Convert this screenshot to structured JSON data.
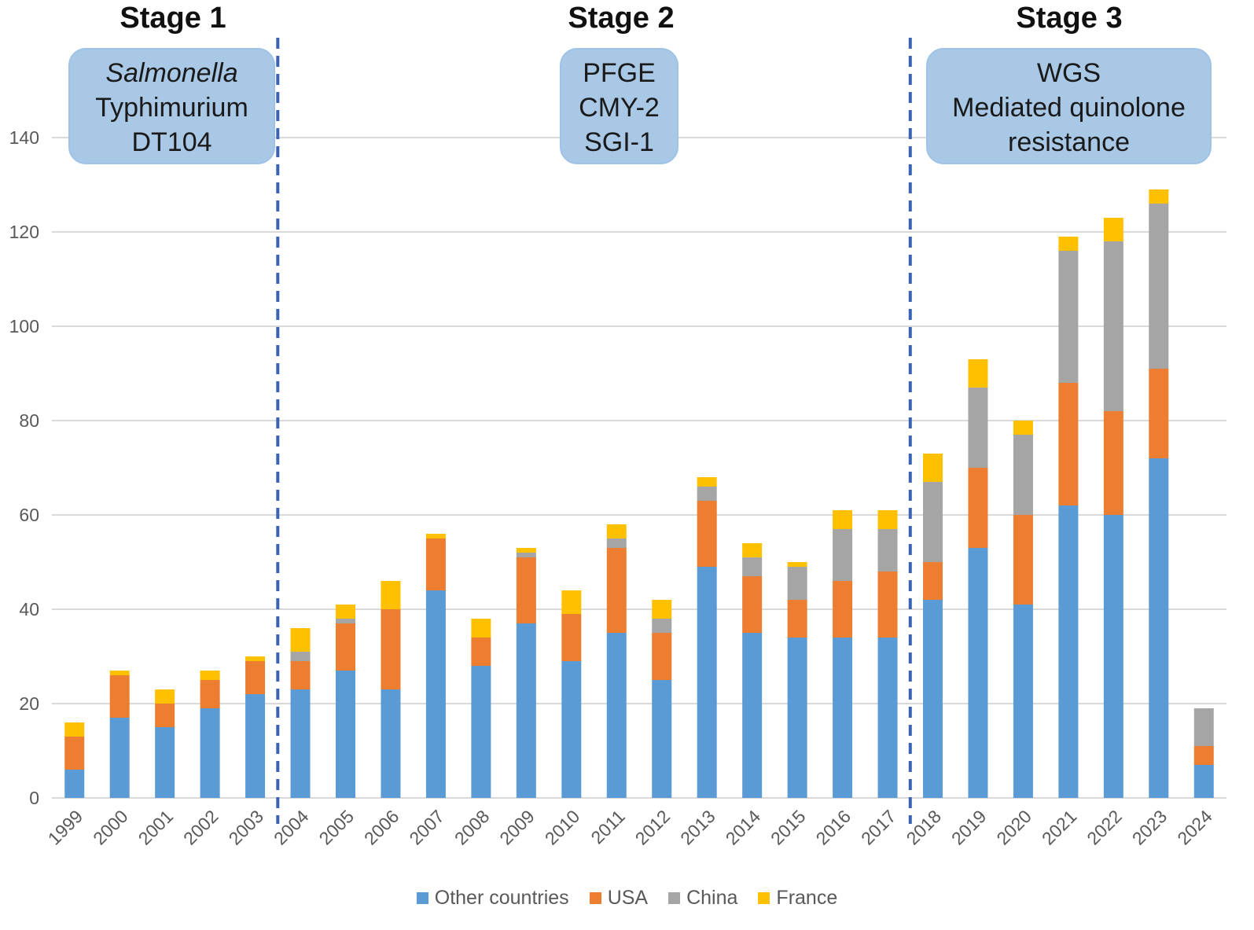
{
  "chart_data": {
    "type": "bar",
    "stacked": true,
    "categories": [
      "1999",
      "2000",
      "2001",
      "2002",
      "2003",
      "2004",
      "2005",
      "2006",
      "2007",
      "2008",
      "2009",
      "2010",
      "2011",
      "2012",
      "2013",
      "2014",
      "2015",
      "2016",
      "2017",
      "2018",
      "2019",
      "2020",
      "2021",
      "2022",
      "2023",
      "2024"
    ],
    "series": [
      {
        "name": "Other countries",
        "color": "#5b9bd5",
        "values": [
          6,
          17,
          15,
          19,
          22,
          23,
          27,
          23,
          44,
          28,
          37,
          29,
          35,
          25,
          49,
          35,
          34,
          34,
          34,
          42,
          53,
          41,
          62,
          60,
          72,
          7
        ]
      },
      {
        "name": "USA",
        "color": "#ed7d31",
        "values": [
          7,
          9,
          5,
          6,
          7,
          6,
          10,
          17,
          11,
          6,
          14,
          10,
          18,
          10,
          14,
          12,
          8,
          12,
          14,
          8,
          17,
          19,
          26,
          22,
          19,
          4
        ]
      },
      {
        "name": "China",
        "color": "#a5a5a5",
        "values": [
          0,
          0,
          0,
          0,
          0,
          2,
          1,
          0,
          0,
          0,
          1,
          0,
          2,
          3,
          3,
          4,
          7,
          11,
          9,
          17,
          17,
          17,
          28,
          36,
          35,
          8
        ]
      },
      {
        "name": "France",
        "color": "#ffc000",
        "values": [
          3,
          1,
          3,
          2,
          1,
          5,
          3,
          6,
          1,
          4,
          1,
          5,
          3,
          4,
          2,
          3,
          1,
          4,
          4,
          6,
          6,
          3,
          3,
          5,
          3,
          0
        ]
      }
    ],
    "ylim": [
      0,
      140
    ],
    "yticks": [
      0,
      20,
      40,
      60,
      80,
      100,
      120,
      140
    ],
    "grid": true,
    "legend_position": "bottom",
    "stage_dividers_between": [
      [
        "2003",
        "2004"
      ],
      [
        "2017",
        "2018"
      ]
    ],
    "title": "",
    "xlabel": "",
    "ylabel": ""
  },
  "stages": [
    {
      "title": "Stage 1",
      "lines": [
        "Salmonella",
        "Typhimurium",
        "DT104"
      ]
    },
    {
      "title": "Stage 2",
      "lines": [
        "PFGE",
        "CMY-2",
        "SGI-1"
      ]
    },
    {
      "title": "Stage 3",
      "lines": [
        "WGS",
        "Mediated quinolone",
        "resistance"
      ]
    }
  ],
  "legend": [
    "Other countries",
    "USA",
    "China",
    "France"
  ]
}
